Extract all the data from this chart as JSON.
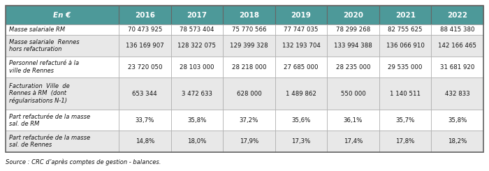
{
  "header_col": "En €",
  "years": [
    "2016",
    "2017",
    "2018",
    "2019",
    "2020",
    "2021",
    "2022"
  ],
  "rows": [
    {
      "label": "Masse salariale RM",
      "values": [
        "70 473 925",
        "78 573 404",
        "75 770 566",
        "77 747 035",
        "78 299 268",
        "82 755 625",
        "88 415 380"
      ],
      "shaded": false,
      "nlines": 1
    },
    {
      "label": "Masse salariale  Rennes\nhors refacturation",
      "values": [
        "136 169 907",
        "128 322 075",
        "129 399 328",
        "132 193 704",
        "133 994 388",
        "136 066 910",
        "142 166 465"
      ],
      "shaded": true,
      "nlines": 2
    },
    {
      "label": "Personnel refacturé à la\nville de Rennes",
      "values": [
        "23 720 050",
        "28 103 000",
        "28 218 000",
        "27 685 000",
        "28 235 000",
        "29 535 000",
        "31 681 920"
      ],
      "shaded": false,
      "nlines": 2
    },
    {
      "label": "Facturation  Ville  de\nRennes à RM  (dont\nrégularisations N-1)",
      "values": [
        "653 344",
        "3 472 633",
        "628 000",
        "1 489 862",
        "550 000",
        "1 140 511",
        "432 833"
      ],
      "shaded": true,
      "nlines": 3
    },
    {
      "label": "Part refacturée de la masse\nsal. de RM",
      "values": [
        "33,7%",
        "35,8%",
        "37,2%",
        "35,6%",
        "36,1%",
        "35,7%",
        "35,8%"
      ],
      "shaded": false,
      "nlines": 2
    },
    {
      "label": "Part refacturée de la masse\nsal. de Rennes",
      "values": [
        "14,8%",
        "18,0%",
        "17,9%",
        "17,3%",
        "17,4%",
        "17,8%",
        "18,2%"
      ],
      "shaded": true,
      "nlines": 2
    }
  ],
  "source": "Source : CRC d’après comptes de gestion - balances.",
  "header_bg": "#4d9999",
  "header_text": "#ffffff",
  "shaded_bg": "#e8e8e8",
  "white_bg": "#ffffff",
  "outer_border": "#666666",
  "inner_border": "#aaaaaa",
  "text_color": "#111111"
}
